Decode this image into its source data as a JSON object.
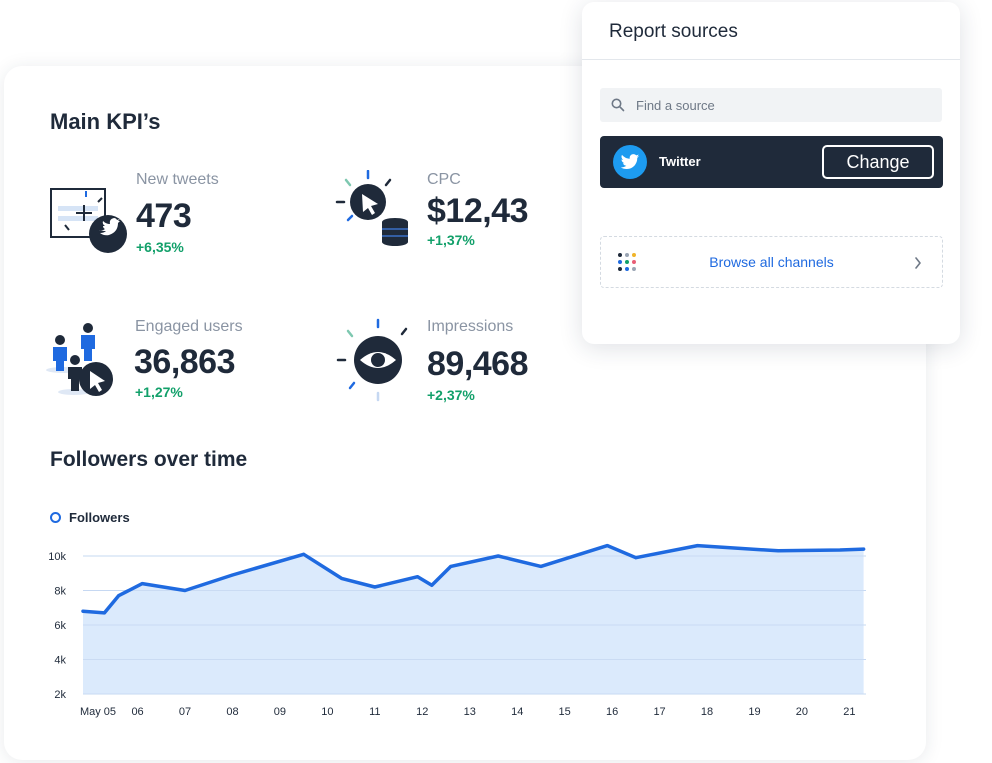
{
  "kpi_section": {
    "title": "Main KPI’s",
    "items": [
      {
        "label": "New tweets",
        "value": "473",
        "change": "+6,35%",
        "icon": "new-tweet-icon"
      },
      {
        "label": "CPC",
        "value": "$12,43",
        "change": "+1,37%",
        "icon": "cost-click-icon"
      },
      {
        "label": "Engaged users",
        "value": "36,863",
        "change": "+1,27%",
        "icon": "engaged-users-icon"
      },
      {
        "label": "Impressions",
        "value": "89,468",
        "change": "+2,37%",
        "icon": "eye-icon"
      }
    ]
  },
  "chart_section": {
    "title": "Followers over time"
  },
  "chart_data": {
    "type": "area",
    "title": "Followers over time",
    "x": [
      "May 05",
      "06",
      "07",
      "08",
      "09",
      "10",
      "11",
      "12",
      "13",
      "14",
      "15",
      "16",
      "17",
      "18",
      "19",
      "20",
      "21"
    ],
    "points": [
      {
        "x": 4.85,
        "y": 6800
      },
      {
        "x": 5.3,
        "y": 6700
      },
      {
        "x": 5.6,
        "y": 7700
      },
      {
        "x": 6.1,
        "y": 8400
      },
      {
        "x": 7.0,
        "y": 8000
      },
      {
        "x": 8.0,
        "y": 8900
      },
      {
        "x": 9.5,
        "y": 10100
      },
      {
        "x": 10.3,
        "y": 8700
      },
      {
        "x": 11.0,
        "y": 8200
      },
      {
        "x": 11.9,
        "y": 8800
      },
      {
        "x": 12.2,
        "y": 8300
      },
      {
        "x": 12.6,
        "y": 9400
      },
      {
        "x": 13.6,
        "y": 10000
      },
      {
        "x": 14.5,
        "y": 9400
      },
      {
        "x": 15.9,
        "y": 10600
      },
      {
        "x": 16.5,
        "y": 9900
      },
      {
        "x": 17.8,
        "y": 10600
      },
      {
        "x": 19.5,
        "y": 10300
      },
      {
        "x": 20.8,
        "y": 10350
      },
      {
        "x": 21.3,
        "y": 10400
      }
    ],
    "series": [
      {
        "name": "Followers"
      }
    ],
    "y_ticks": [
      "10k",
      "8k",
      "6k",
      "4k",
      "2k"
    ],
    "y_tick_values": [
      10000,
      8000,
      6000,
      4000,
      2000
    ],
    "ylim": [
      2000,
      10000
    ],
    "xlim": [
      4.85,
      21.35
    ],
    "grid": true,
    "legend": "top-left",
    "colors": {
      "line": "#1f6ae0",
      "fill": "#dbeafc",
      "grid": "#c6d8f2"
    }
  },
  "report_sources": {
    "title": "Report sources",
    "search": {
      "placeholder": "Find a source",
      "value": ""
    },
    "selected_source": {
      "name": "Twitter",
      "icon": "twitter-icon",
      "action_label": "Change"
    },
    "browse_label": "Browse all channels"
  },
  "colors": {
    "accent": "#1f6ae0",
    "positive": "#12a06a",
    "dark": "#1f2a3a",
    "twitter": "#1d9bf0"
  }
}
